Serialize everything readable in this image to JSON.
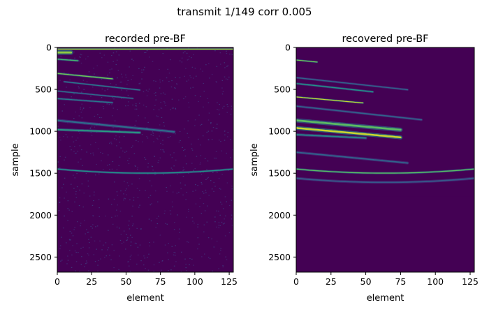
{
  "figure": {
    "suptitle": "transmit 1/149   corr 0.005"
  },
  "chart_data": [
    {
      "type": "heatmap",
      "title": "recorded pre-BF",
      "xlabel": "element",
      "ylabel": "sample",
      "xlim": [
        0,
        128
      ],
      "ylim": [
        2680,
        0
      ],
      "x_ticks": [
        "0",
        "25",
        "50",
        "75",
        "100",
        "125"
      ],
      "y_ticks": [
        "0",
        "500",
        "1000",
        "1500",
        "2000",
        "2500"
      ],
      "colormap": "viridis",
      "background_color": "#440154",
      "reflectors": [
        {
          "sample": 20,
          "x_start": 0,
          "x_end": 128,
          "slope": 0.0,
          "curvature": 0,
          "intensity": 0.9,
          "width": 12
        },
        {
          "sample": 60,
          "x_start": 0,
          "x_end": 10,
          "slope": 0.0,
          "curvature": 0,
          "intensity": 0.85,
          "width": 30
        },
        {
          "sample": 140,
          "x_start": 0,
          "x_end": 15,
          "slope": 1.2,
          "curvature": 0,
          "intensity": 0.7,
          "width": 14
        },
        {
          "sample": 310,
          "x_start": 0,
          "x_end": 40,
          "slope": 1.6,
          "curvature": 0,
          "intensity": 0.8,
          "width": 14
        },
        {
          "sample": 400,
          "x_start": 5,
          "x_end": 60,
          "slope": 1.8,
          "curvature": 0,
          "intensity": 0.45,
          "width": 12
        },
        {
          "sample": 520,
          "x_start": 0,
          "x_end": 55,
          "slope": 1.6,
          "curvature": 0,
          "intensity": 0.4,
          "width": 12
        },
        {
          "sample": 610,
          "x_start": 0,
          "x_end": 40,
          "slope": 1.2,
          "curvature": 0,
          "intensity": 0.45,
          "width": 14
        },
        {
          "sample": 870,
          "x_start": 0,
          "x_end": 85,
          "slope": 1.6,
          "curvature": 0,
          "intensity": 0.4,
          "width": 20
        },
        {
          "sample": 980,
          "x_start": 0,
          "x_end": 60,
          "slope": 0.6,
          "curvature": 0,
          "intensity": 0.6,
          "width": 18
        },
        {
          "sample": 1450,
          "x_start": 0,
          "x_end": 128,
          "slope": 0.0,
          "curvature": -0.012,
          "intensity": 0.55,
          "width": 14
        }
      ]
    },
    {
      "type": "heatmap",
      "title": "recovered pre-BF",
      "xlabel": "element",
      "ylabel": "sample",
      "xlim": [
        0,
        128
      ],
      "ylim": [
        2680,
        0
      ],
      "x_ticks": [
        "0",
        "25",
        "50",
        "75",
        "100",
        "125"
      ],
      "y_ticks": [
        "0",
        "500",
        "1000",
        "1500",
        "2000",
        "2500"
      ],
      "colormap": "viridis",
      "background_color": "#440154",
      "reflectors": [
        {
          "sample": 150,
          "x_start": 0,
          "x_end": 15,
          "slope": 1.6,
          "curvature": 0,
          "intensity": 0.8,
          "width": 12
        },
        {
          "sample": 360,
          "x_start": 0,
          "x_end": 80,
          "slope": 1.8,
          "curvature": 0,
          "intensity": 0.35,
          "width": 14
        },
        {
          "sample": 430,
          "x_start": 0,
          "x_end": 55,
          "slope": 1.8,
          "curvature": 0,
          "intensity": 0.55,
          "width": 14
        },
        {
          "sample": 590,
          "x_start": 0,
          "x_end": 48,
          "slope": 1.5,
          "curvature": 0,
          "intensity": 0.95,
          "width": 12
        },
        {
          "sample": 700,
          "x_start": 0,
          "x_end": 90,
          "slope": 1.8,
          "curvature": 0,
          "intensity": 0.35,
          "width": 16
        },
        {
          "sample": 870,
          "x_start": 0,
          "x_end": 75,
          "slope": 1.5,
          "curvature": 0,
          "intensity": 0.75,
          "width": 28
        },
        {
          "sample": 960,
          "x_start": 0,
          "x_end": 75,
          "slope": 1.5,
          "curvature": 0,
          "intensity": 0.95,
          "width": 26
        },
        {
          "sample": 1040,
          "x_start": 0,
          "x_end": 50,
          "slope": 0.8,
          "curvature": 0,
          "intensity": 0.5,
          "width": 18
        },
        {
          "sample": 1250,
          "x_start": 0,
          "x_end": 80,
          "slope": 1.6,
          "curvature": 0,
          "intensity": 0.35,
          "width": 18
        },
        {
          "sample": 1450,
          "x_start": 0,
          "x_end": 128,
          "slope": 0.0,
          "curvature": -0.012,
          "intensity": 0.75,
          "width": 14
        },
        {
          "sample": 1560,
          "x_start": 0,
          "x_end": 128,
          "slope": 0.0,
          "curvature": -0.012,
          "intensity": 0.3,
          "width": 18
        }
      ]
    }
  ]
}
